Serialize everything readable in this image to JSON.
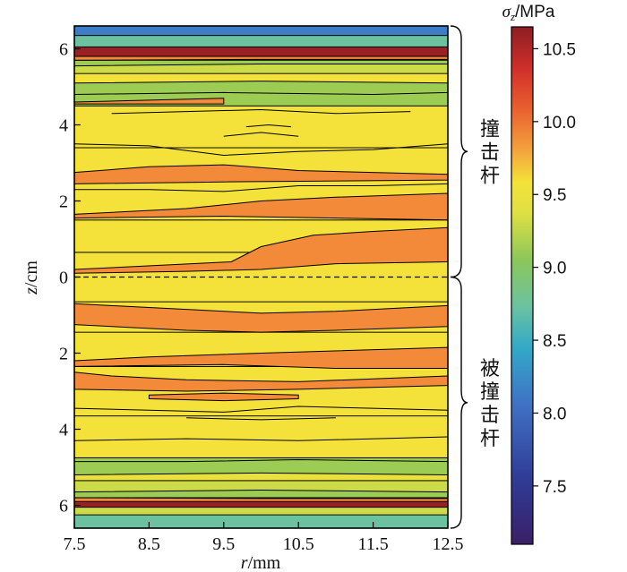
{
  "chart_data": {
    "type": "heatmap",
    "title": "",
    "xlabel": {
      "symbol": "r",
      "unit": "/mm"
    },
    "ylabel": {
      "symbol": "z",
      "unit": "/cm"
    },
    "xlim": [
      7.5,
      12.5
    ],
    "ylim": [
      -6.6,
      6.6
    ],
    "x_ticks": [
      7.5,
      8.5,
      9.5,
      10.5,
      11.5,
      12.5
    ],
    "x_tick_labels": [
      "7.5",
      "8.5",
      "9.5",
      "10.5",
      "11.5",
      "12.5"
    ],
    "y_ticks": [
      6,
      4,
      2,
      0,
      -2,
      -4,
      -6
    ],
    "y_tick_labels": [
      "6",
      "4",
      "2",
      "0",
      "2",
      "4",
      "6"
    ],
    "interface_z": 0,
    "colorbar": {
      "label_symbol": "σ",
      "label_subscript": "z",
      "label_unit": "/MPa",
      "range": [
        7.1,
        10.65
      ],
      "ticks": [
        7.5,
        8.0,
        8.5,
        9.0,
        9.5,
        10.0,
        10.5
      ],
      "tick_labels": [
        "7.5",
        "8.0",
        "8.5",
        "9.0",
        "9.5",
        "10.0",
        "10.5"
      ]
    },
    "parts": [
      {
        "name": "撞击杆",
        "z_range": [
          0,
          6.6
        ]
      },
      {
        "name": "被撞击杆",
        "z_range": [
          -6.6,
          0
        ]
      }
    ],
    "bands": [
      {
        "z0": -6.6,
        "z1": -6.25,
        "level": 8.75
      },
      {
        "z0": -6.25,
        "z1": -6.05,
        "level": 9.25
      },
      {
        "z0": -6.05,
        "z1": -5.85,
        "level": 10.6
      },
      {
        "z0": -5.85,
        "z1": -5.65,
        "level": 9.25
      },
      {
        "z0": -5.65,
        "z1": -5.35,
        "level": 9.25
      },
      {
        "z0": -5.35,
        "z1": -5.1,
        "level": 9.4
      },
      {
        "z0": -5.1,
        "z1": -4.75,
        "level": 9.1
      },
      {
        "z0": -4.75,
        "z1": -3.65,
        "level": 9.5
      },
      {
        "z0": -3.65,
        "z1": -2.35,
        "level": 9.5
      },
      {
        "z0": -2.35,
        "z1": -1.45,
        "level": 9.5
      },
      {
        "z0": -1.45,
        "z1": -0.65,
        "level": 9.5
      },
      {
        "z0": -0.65,
        "z1": 0.65,
        "level": 9.5
      },
      {
        "z0": 0.65,
        "z1": 1.5,
        "level": 9.5
      },
      {
        "z0": 1.5,
        "z1": 2.6,
        "level": 9.5
      },
      {
        "z0": 2.6,
        "z1": 3.4,
        "level": 9.5
      },
      {
        "z0": 3.4,
        "z1": 4.5,
        "level": 9.5
      },
      {
        "z0": 4.5,
        "z1": 5.0,
        "level": 9.1
      },
      {
        "z0": 5.0,
        "z1": 5.35,
        "level": 9.5
      },
      {
        "z0": 5.35,
        "z1": 5.6,
        "level": 9.25
      },
      {
        "z0": 5.6,
        "z1": 5.8,
        "level": 10.0
      },
      {
        "z0": 5.8,
        "z1": 6.05,
        "level": 10.6
      },
      {
        "z0": 6.05,
        "z1": 6.35,
        "level": 8.75
      },
      {
        "z0": 6.35,
        "z1": 6.6,
        "level": 8.1
      }
    ],
    "blobs": [
      {
        "level": 9.75,
        "points": [
          [
            7.5,
            0.2
          ],
          [
            9.6,
            0.4
          ],
          [
            10.0,
            0.8
          ],
          [
            10.7,
            1.1
          ],
          [
            11.5,
            1.2
          ],
          [
            12.5,
            1.3
          ],
          [
            12.5,
            0.4
          ],
          [
            11.0,
            0.35
          ],
          [
            10.0,
            0.2
          ],
          [
            9.0,
            0.15
          ],
          [
            7.5,
            0.1
          ]
        ]
      },
      {
        "level": 9.75,
        "points": [
          [
            7.5,
            1.65
          ],
          [
            9.0,
            1.8
          ],
          [
            10.0,
            2.0
          ],
          [
            11.0,
            2.1
          ],
          [
            12.5,
            2.2
          ],
          [
            12.5,
            1.5
          ],
          [
            11.0,
            1.55
          ],
          [
            9.5,
            1.6
          ],
          [
            7.5,
            1.55
          ]
        ]
      },
      {
        "level": 9.75,
        "points": [
          [
            7.5,
            2.75
          ],
          [
            8.5,
            2.9
          ],
          [
            9.5,
            2.95
          ],
          [
            10.5,
            2.8
          ],
          [
            12.5,
            2.7
          ],
          [
            12.5,
            2.55
          ],
          [
            9.5,
            2.5
          ],
          [
            7.5,
            2.45
          ]
        ]
      },
      {
        "level": 9.75,
        "points": [
          [
            7.5,
            -0.7
          ],
          [
            8.5,
            -0.8
          ],
          [
            10.0,
            -0.95
          ],
          [
            11.0,
            -0.9
          ],
          [
            12.5,
            -0.75
          ],
          [
            12.5,
            -1.3
          ],
          [
            11.0,
            -1.4
          ],
          [
            10.0,
            -1.45
          ],
          [
            9.0,
            -1.4
          ],
          [
            7.5,
            -1.25
          ]
        ]
      },
      {
        "level": 9.75,
        "points": [
          [
            7.5,
            -2.2
          ],
          [
            8.5,
            -2.1
          ],
          [
            10.0,
            -2.0
          ],
          [
            12.5,
            -1.85
          ],
          [
            12.5,
            -2.4
          ],
          [
            11.0,
            -2.4
          ],
          [
            9.5,
            -2.3
          ],
          [
            7.5,
            -2.35
          ]
        ]
      },
      {
        "level": 9.75,
        "points": [
          [
            7.5,
            -2.5
          ],
          [
            8.0,
            -2.6
          ],
          [
            9.0,
            -2.7
          ],
          [
            10.5,
            -2.75
          ],
          [
            12.5,
            -2.6
          ],
          [
            12.5,
            -2.85
          ],
          [
            10.5,
            -2.95
          ],
          [
            9.0,
            -3.0
          ],
          [
            7.5,
            -2.95
          ]
        ]
      },
      {
        "level": 9.75,
        "points": [
          [
            8.5,
            -3.1
          ],
          [
            9.5,
            -3.05
          ],
          [
            10.5,
            -3.1
          ],
          [
            10.5,
            -3.2
          ],
          [
            9.5,
            -3.25
          ],
          [
            8.5,
            -3.2
          ]
        ]
      },
      {
        "level": 9.75,
        "points": [
          [
            7.5,
            4.6
          ],
          [
            8.5,
            4.65
          ],
          [
            9.5,
            4.7
          ],
          [
            9.5,
            4.55
          ],
          [
            7.5,
            4.55
          ]
        ]
      },
      {
        "level": 9.1,
        "points": [
          [
            7.5,
            -4.85
          ],
          [
            9.0,
            -4.85
          ],
          [
            10.5,
            -4.8
          ],
          [
            12.5,
            -4.85
          ],
          [
            12.5,
            -5.2
          ],
          [
            10.0,
            -5.15
          ],
          [
            7.5,
            -5.2
          ]
        ]
      },
      {
        "level": 9.1,
        "points": [
          [
            7.5,
            4.8
          ],
          [
            9.5,
            4.85
          ],
          [
            11.5,
            4.8
          ],
          [
            12.5,
            4.85
          ],
          [
            12.5,
            5.1
          ],
          [
            10.0,
            5.15
          ],
          [
            7.5,
            5.1
          ]
        ]
      },
      {
        "level": 9.1,
        "points": [
          [
            7.5,
            5.55
          ],
          [
            10.0,
            5.6
          ],
          [
            12.5,
            5.6
          ],
          [
            12.5,
            5.7
          ],
          [
            7.5,
            5.7
          ]
        ]
      },
      {
        "level": 9.75,
        "points": [
          [
            7.5,
            5.7
          ],
          [
            10.0,
            5.72
          ],
          [
            12.5,
            5.72
          ],
          [
            12.5,
            5.8
          ],
          [
            7.5,
            5.8
          ]
        ]
      },
      {
        "level": 9.1,
        "points": [
          [
            7.5,
            -5.65
          ],
          [
            10.0,
            -5.6
          ],
          [
            12.5,
            -5.65
          ],
          [
            12.5,
            -5.8
          ],
          [
            7.5,
            -5.8
          ]
        ]
      },
      {
        "level": 9.75,
        "points": [
          [
            7.5,
            -5.8
          ],
          [
            10.0,
            -5.82
          ],
          [
            12.5,
            -5.82
          ],
          [
            12.5,
            -5.9
          ],
          [
            7.5,
            -5.9
          ]
        ]
      }
    ],
    "contour_lines": [
      [
        [
          7.5,
          2.3
        ],
        [
          8.5,
          2.3
        ],
        [
          9.5,
          2.25
        ],
        [
          10.5,
          2.4
        ],
        [
          11.5,
          2.4
        ],
        [
          12.5,
          2.45
        ]
      ],
      [
        [
          7.5,
          3.5
        ],
        [
          8.5,
          3.45
        ],
        [
          9.5,
          3.2
        ],
        [
          10.5,
          3.3
        ],
        [
          11.5,
          3.35
        ],
        [
          12.5,
          3.5
        ]
      ],
      [
        [
          9.5,
          3.7
        ],
        [
          10.0,
          3.8
        ],
        [
          10.5,
          3.7
        ]
      ],
      [
        [
          9.8,
          3.95
        ],
        [
          10.1,
          4.0
        ],
        [
          10.4,
          3.95
        ]
      ],
      [
        [
          8.0,
          4.3
        ],
        [
          9.0,
          4.35
        ],
        [
          10.0,
          4.4
        ],
        [
          11.0,
          4.3
        ],
        [
          12.0,
          4.35
        ]
      ],
      [
        [
          7.5,
          -3.45
        ],
        [
          8.5,
          -3.5
        ],
        [
          9.5,
          -3.55
        ],
        [
          10.5,
          -3.4
        ],
        [
          12.5,
          -3.5
        ]
      ],
      [
        [
          9.0,
          -3.7
        ],
        [
          10.0,
          -3.75
        ],
        [
          11.0,
          -3.7
        ]
      ],
      [
        [
          7.5,
          -4.3
        ],
        [
          9.0,
          -4.25
        ],
        [
          10.5,
          -4.3
        ],
        [
          12.5,
          -4.2
        ]
      ]
    ]
  }
}
